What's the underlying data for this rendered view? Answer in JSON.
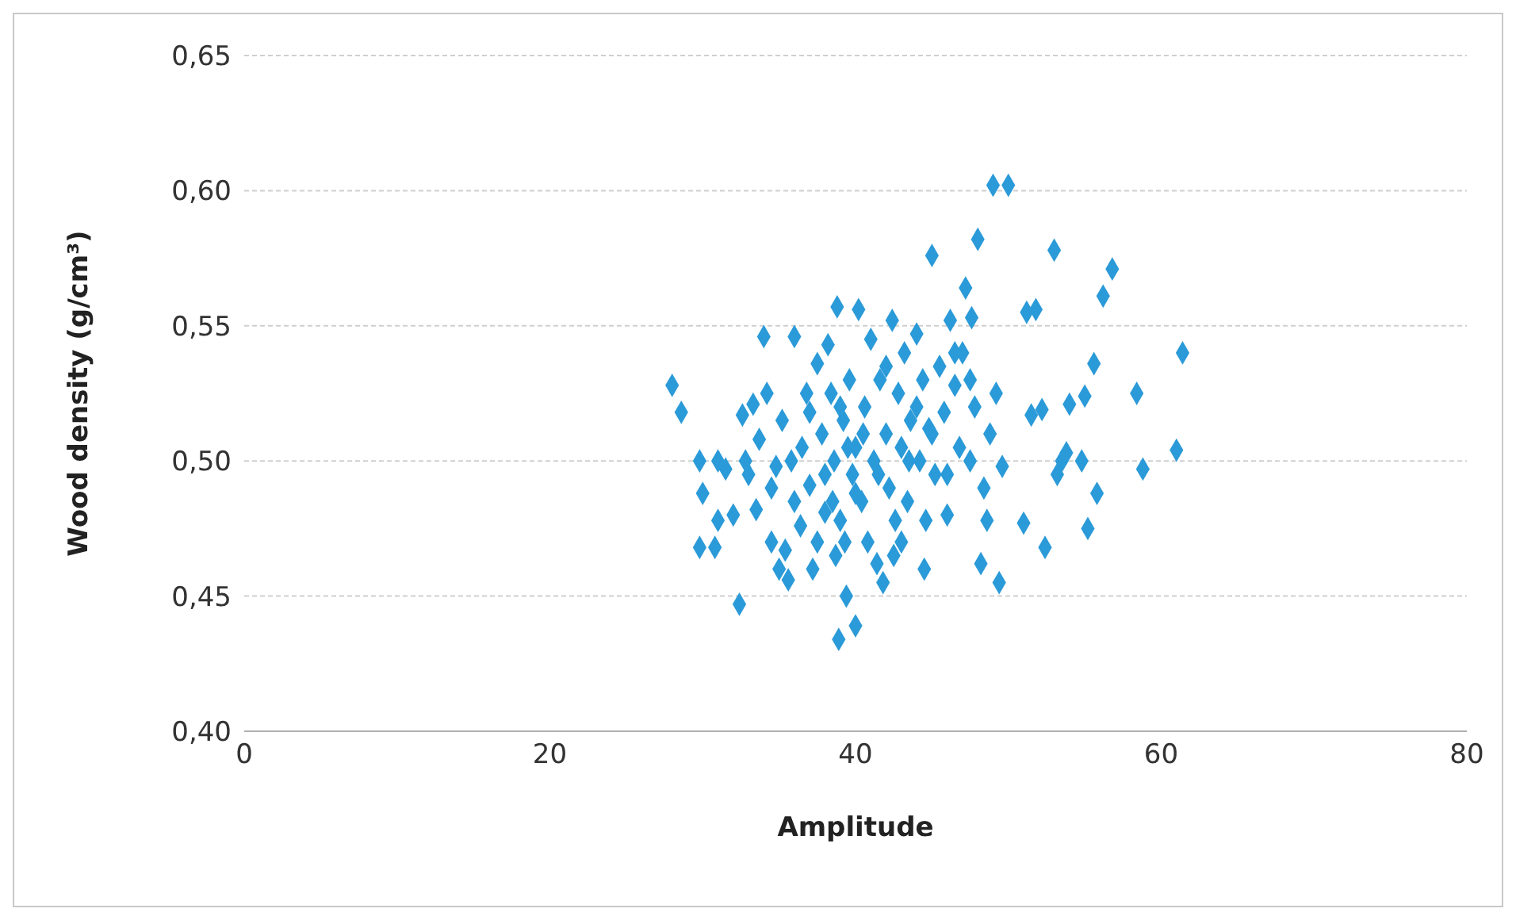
{
  "chart_data": {
    "type": "scatter",
    "xlabel": "Amplitude",
    "ylabel": "Wood density (g/cm³)",
    "xlim": [
      0,
      80
    ],
    "xticks": [
      0,
      20,
      40,
      60,
      80
    ],
    "ylim": [
      0.4,
      0.65
    ],
    "yticks": [
      {
        "value": 0.4,
        "label": "0,40"
      },
      {
        "value": 0.45,
        "label": "0,45"
      },
      {
        "value": 0.5,
        "label": "0,50"
      },
      {
        "value": 0.55,
        "label": "0,55"
      },
      {
        "value": 0.6,
        "label": "0,60"
      },
      {
        "value": 0.65,
        "label": "0,65"
      }
    ],
    "grid": "y",
    "legend": false,
    "marker": "diamond",
    "series": [
      {
        "color": "#2b9ad8",
        "x": [
          28.0,
          28.6,
          29.8,
          30.0,
          29.8,
          30.8,
          31.0,
          31.5,
          32.0,
          32.4,
          32.6,
          33.0,
          33.3,
          33.7,
          34.0,
          34.2,
          34.5,
          34.8,
          35.0,
          35.4,
          35.6,
          35.2,
          35.8,
          36.0,
          36.4,
          36.8,
          37.0,
          37.2,
          37.5,
          37.8,
          38.0,
          38.2,
          38.4,
          38.6,
          38.8,
          38.9,
          39.0,
          39.2,
          39.4,
          39.6,
          39.8,
          40.0,
          40.0,
          40.2,
          40.4,
          40.6,
          40.8,
          41.0,
          41.2,
          41.4,
          41.6,
          41.8,
          42.0,
          42.2,
          42.4,
          42.6,
          42.8,
          43.0,
          43.2,
          43.4,
          43.6,
          44.0,
          44.2,
          44.4,
          44.6,
          44.8,
          45.0,
          45.2,
          45.5,
          45.8,
          46.0,
          46.2,
          46.5,
          46.8,
          47.0,
          47.2,
          47.5,
          47.6,
          47.8,
          48.0,
          48.2,
          48.4,
          48.6,
          48.8,
          49.0,
          49.2,
          49.4,
          49.6,
          50.0,
          51.0,
          51.2,
          51.5,
          51.8,
          52.2,
          52.4,
          53.0,
          53.2,
          53.5,
          53.8,
          54.0,
          54.8,
          55.0,
          55.2,
          55.6,
          55.8,
          56.2,
          56.8,
          58.4,
          58.8,
          61.0,
          61.4,
          36.5,
          37.0,
          38.0,
          38.5,
          39.0,
          39.5,
          40.0,
          40.5,
          39.3,
          38.7,
          41.5,
          42.0,
          43.5,
          44.0,
          45.0,
          46.0,
          46.5,
          47.5,
          34.5,
          33.5,
          36.0,
          37.5,
          42.5,
          44.5,
          43.0,
          31.0,
          32.8
        ],
        "values": [
          0.528,
          0.518,
          0.5,
          0.488,
          0.468,
          0.468,
          0.478,
          0.497,
          0.48,
          0.447,
          0.517,
          0.495,
          0.521,
          0.508,
          0.546,
          0.525,
          0.49,
          0.498,
          0.46,
          0.467,
          0.456,
          0.515,
          0.5,
          0.546,
          0.476,
          0.525,
          0.491,
          0.46,
          0.536,
          0.51,
          0.481,
          0.543,
          0.525,
          0.5,
          0.557,
          0.434,
          0.478,
          0.515,
          0.45,
          0.53,
          0.495,
          0.439,
          0.505,
          0.556,
          0.485,
          0.52,
          0.47,
          0.545,
          0.5,
          0.462,
          0.53,
          0.455,
          0.51,
          0.49,
          0.552,
          0.478,
          0.525,
          0.505,
          0.54,
          0.485,
          0.515,
          0.547,
          0.5,
          0.53,
          0.478,
          0.512,
          0.576,
          0.495,
          0.535,
          0.518,
          0.48,
          0.552,
          0.528,
          0.505,
          0.54,
          0.564,
          0.5,
          0.553,
          0.52,
          0.582,
          0.462,
          0.49,
          0.478,
          0.51,
          0.602,
          0.525,
          0.455,
          0.498,
          0.602,
          0.477,
          0.555,
          0.517,
          0.556,
          0.519,
          0.468,
          0.578,
          0.495,
          0.5,
          0.503,
          0.521,
          0.5,
          0.524,
          0.475,
          0.536,
          0.488,
          0.561,
          0.571,
          0.525,
          0.497,
          0.504,
          0.54,
          0.505,
          0.518,
          0.495,
          0.485,
          0.52,
          0.505,
          0.488,
          0.51,
          0.47,
          0.465,
          0.495,
          0.535,
          0.5,
          0.52,
          0.51,
          0.495,
          0.54,
          0.53,
          0.47,
          0.482,
          0.485,
          0.47,
          0.465,
          0.46,
          0.47,
          0.5,
          0.5
        ]
      }
    ]
  }
}
